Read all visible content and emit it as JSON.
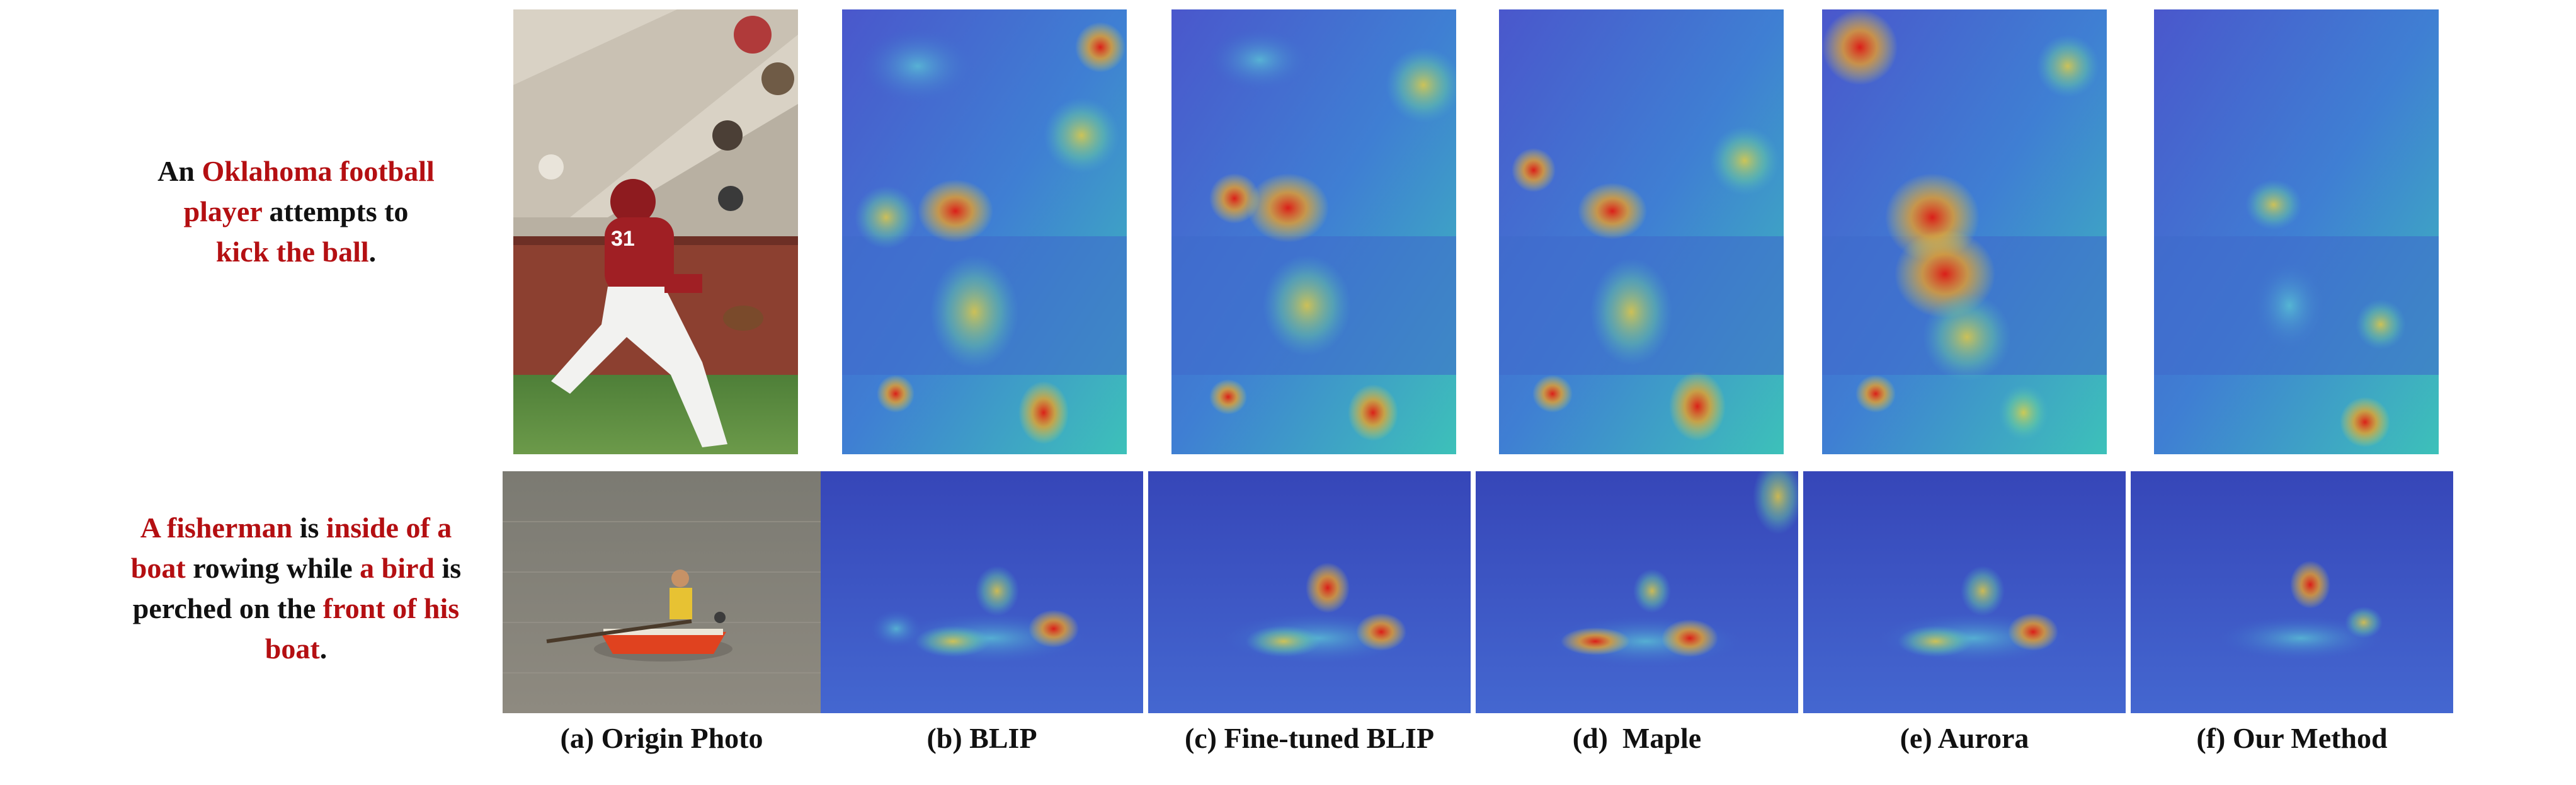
{
  "captions": {
    "row1": [
      {
        "text": "An ",
        "hl": false
      },
      {
        "text": "Oklahoma football player",
        "hl": true
      },
      {
        "text": " attempts to ",
        "hl": false
      },
      {
        "text": "kick the ball",
        "hl": true
      },
      {
        "text": ".",
        "hl": false
      }
    ],
    "row2": [
      {
        "text": "A fisherman",
        "hl": true
      },
      {
        "text": " is ",
        "hl": false
      },
      {
        "text": "inside of a boat",
        "hl": true
      },
      {
        "text": " rowing while ",
        "hl": false
      },
      {
        "text": "a bird",
        "hl": true
      },
      {
        "text": " is perched on the ",
        "hl": false
      },
      {
        "text": "front of his boat",
        "hl": true
      },
      {
        "text": ".",
        "hl": false
      }
    ]
  },
  "labels": {
    "a": "(a) Origin Photo",
    "b": "(b) BLIP",
    "c": "(c) Fine-tuned BLIP",
    "d": "(d)  Maple",
    "e": "(e) Aurora",
    "f": "(f) Our Method"
  },
  "colors": {
    "highlight": "#b40f12",
    "text": "#111111",
    "heat_low": "#3f54c8",
    "heat_high": "#e02a1c"
  },
  "panels": {
    "row1_original": "football-kicker-photo",
    "row1_heatmaps": [
      "blip-heatmap-kicker",
      "finetuned-blip-heatmap-kicker",
      "maple-heatmap-kicker",
      "aurora-heatmap-kicker",
      "our-method-heatmap-kicker"
    ],
    "row2_original": "fisherman-boat-photo",
    "row2_heatmaps": [
      "blip-heatmap-boat",
      "finetuned-blip-heatmap-boat",
      "maple-heatmap-boat",
      "aurora-heatmap-boat",
      "our-method-heatmap-boat"
    ]
  }
}
